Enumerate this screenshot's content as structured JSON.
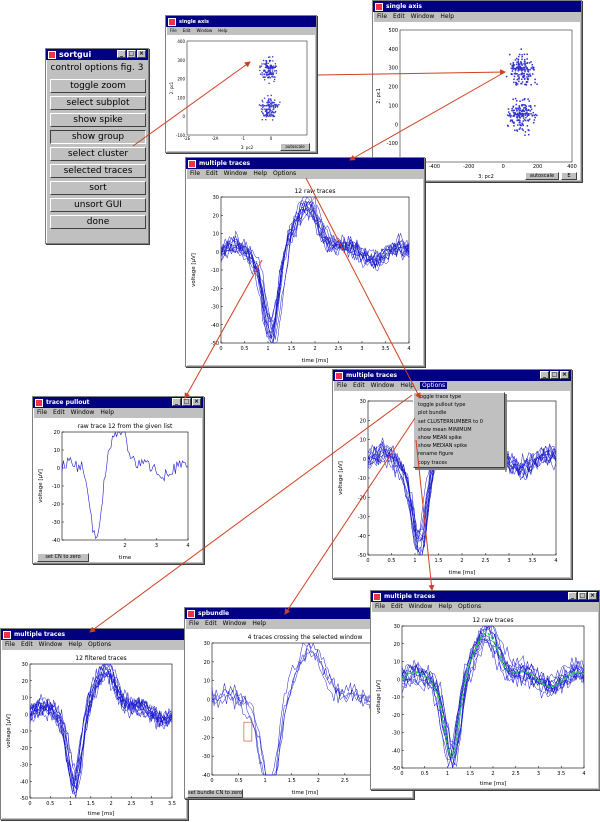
{
  "colors": {
    "title_bar": "#000080",
    "window_bg": "#c0c0c0",
    "trace": "#1a1acc",
    "arrow": "#d04020",
    "green_mean": "#22cc44",
    "points": "#3030cc"
  },
  "control": {
    "title": "sortgui",
    "subtitle": "control options fig. 3",
    "buttons": [
      "toggle zoom",
      "select subplot",
      "show spike",
      "show group",
      "select cluster",
      "selected traces",
      "sort",
      "unsort GUI",
      "done"
    ],
    "active_button": "show group"
  },
  "single_axis": {
    "title": "single axis",
    "menu": [
      "File",
      "Edit",
      "Window",
      "Help"
    ],
    "ylabel": "2: pc1",
    "xlabel": "3: pc2",
    "yticks": [
      "400",
      "300",
      "200",
      "100",
      "0",
      "-100"
    ],
    "xticks": [
      "-2E",
      "-2A",
      "-1",
      "0"
    ],
    "button": "autoscale"
  },
  "single_axis_large": {
    "title": "single axis",
    "menu": [
      "File",
      "Edit",
      "Window",
      "Help"
    ],
    "ylabel": "2: pc1",
    "xlabel": "3: pc2",
    "yticks": [
      "500",
      "400",
      "300",
      "200",
      "100",
      "0",
      "-100",
      "-200"
    ],
    "xticks": [
      "-600",
      "-400",
      "-200",
      "0",
      "200",
      "400"
    ],
    "button": "autoscale",
    "button2": "E"
  },
  "mt1": {
    "title": "multiple traces",
    "menu": [
      "File",
      "Edit",
      "Window",
      "Help",
      "Options"
    ],
    "plot_title": "12 raw traces",
    "ylabel": "voltage [µV]",
    "xlabel": "time [ms]",
    "yticks": [
      "30",
      "20",
      "10",
      "0",
      "-10",
      "-20",
      "-30",
      "-40",
      "-50"
    ],
    "xticks": [
      "0",
      "0.5",
      "1",
      "1.5",
      "2",
      "2.5",
      "3",
      "3.5",
      "4"
    ]
  },
  "pullout": {
    "title": "trace pullout",
    "menu": [
      "File",
      "Edit",
      "Window",
      "Help"
    ],
    "plot_title": "raw trace 12 from the given list",
    "ylabel": "voltage [µV]",
    "xlabel": "time",
    "yticks": [
      "20",
      "10",
      "0",
      "-10",
      "-20",
      "-30",
      "-40"
    ],
    "xticks": [
      "2",
      "3",
      "4"
    ],
    "button": "set CN to zero"
  },
  "mt2": {
    "title": "multiple traces",
    "menu": [
      "File",
      "Edit",
      "Window",
      "Help",
      "Options"
    ],
    "ylabel": "voltage [µV]",
    "xlabel": "time [ms]",
    "yticks": [
      "30",
      "20",
      "10",
      "0",
      "-10",
      "-20",
      "-30",
      "-40",
      "-50"
    ],
    "xticks": [
      "0",
      "0.5",
      "1",
      "1.5",
      "2",
      "2.5",
      "3",
      "3.5",
      "4"
    ],
    "dropdown": [
      "toggle trace type",
      "toggle pullout type",
      "plot bundle",
      "set CLUSTERNUMBER to 0",
      "show mean MINIMUM",
      "show MEAN spike",
      "show MEDIAN spike",
      "rename figure",
      "copy traces"
    ]
  },
  "mt3": {
    "title": "multiple traces",
    "menu": [
      "File",
      "Edit",
      "Window",
      "Help",
      "Options"
    ],
    "plot_title": "12 filtered traces",
    "ylabel": "voltage [µV]",
    "xlabel": "time [ms]",
    "yticks": [
      "30",
      "20",
      "10",
      "0",
      "-10",
      "-20",
      "-30",
      "-40",
      "-50"
    ],
    "xticks": [
      "0",
      "0.5",
      "1",
      "1.5",
      "2",
      "2.5",
      "3",
      "3.5"
    ]
  },
  "bundle": {
    "title": "spbundle",
    "menu": [
      "File",
      "Edit",
      "Window",
      "Help"
    ],
    "plot_title": "4 traces crossing the selected window",
    "yticks": [
      "30",
      "20",
      "10",
      "0",
      "-10",
      "-20",
      "-30",
      "-40"
    ],
    "xticks": [
      "0",
      "0.5",
      "1",
      "1.5",
      "2",
      "2.5",
      "3",
      "3.5"
    ],
    "xlabel": "time  [ms]",
    "button": "set bundle CN to zero"
  },
  "mt4": {
    "title": "multiple traces",
    "menu": [
      "File",
      "Edit",
      "Window",
      "Help",
      "Options"
    ],
    "plot_title": "12 raw traces",
    "ylabel": "voltage [µV]",
    "xlabel": "time [ms]",
    "yticks": [
      "30",
      "20",
      "10",
      "0",
      "-10",
      "-20",
      "-30",
      "-40",
      "-50"
    ],
    "xticks": [
      "0",
      "0.5",
      "1",
      "1.5",
      "2",
      "2.5",
      "3",
      "3.5",
      "4"
    ]
  }
}
